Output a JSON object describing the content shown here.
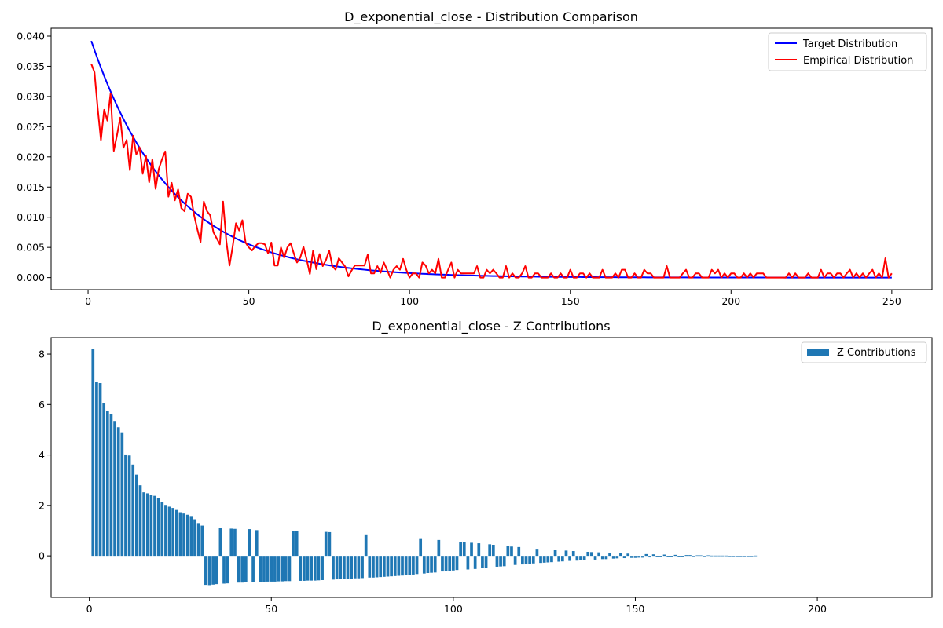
{
  "chart_data": [
    {
      "type": "line",
      "title": "D_exponential_close - Distribution Comparison",
      "xlabel": "",
      "ylabel": "",
      "xlim": [
        -11.5,
        262.5
      ],
      "ylim": [
        -0.002,
        0.0413
      ],
      "xticks": [
        0,
        50,
        100,
        150,
        200,
        250
      ],
      "yticks": [
        0.0,
        0.005,
        0.01,
        0.015,
        0.02,
        0.025,
        0.03,
        0.035,
        0.04
      ],
      "ytick_labels": [
        "0.000",
        "0.005",
        "0.010",
        "0.015",
        "0.020",
        "0.025",
        "0.030",
        "0.035",
        "0.040"
      ],
      "legend_position": "top-right",
      "series": [
        {
          "name": "Target Distribution",
          "color": "#0000ff",
          "function": {
            "kind": "exponential",
            "x_start": 1,
            "x_end": 250,
            "initial_value": 0.0392,
            "decay_rate": 0.04
          }
        },
        {
          "name": "Empirical Distribution",
          "color": "#ff0000",
          "x_start": 1,
          "values": [
            0.0354,
            0.034,
            0.028,
            0.0228,
            0.0278,
            0.026,
            0.0305,
            0.021,
            0.0236,
            0.0265,
            0.0215,
            0.0228,
            0.0178,
            0.0235,
            0.0204,
            0.0216,
            0.0172,
            0.0202,
            0.0158,
            0.0196,
            0.0147,
            0.018,
            0.0196,
            0.0209,
            0.0134,
            0.0157,
            0.0128,
            0.0146,
            0.0115,
            0.011,
            0.0139,
            0.0134,
            0.0103,
            0.008,
            0.0059,
            0.0126,
            0.011,
            0.0103,
            0.0075,
            0.0065,
            0.0055,
            0.0126,
            0.0061,
            0.002,
            0.0052,
            0.009,
            0.0078,
            0.0095,
            0.0058,
            0.005,
            0.0045,
            0.0052,
            0.0057,
            0.0057,
            0.0055,
            0.004,
            0.0058,
            0.002,
            0.002,
            0.005,
            0.0033,
            0.005,
            0.0057,
            0.004,
            0.0025,
            0.0033,
            0.0051,
            0.003,
            0.0006,
            0.0045,
            0.0014,
            0.0039,
            0.0019,
            0.0029,
            0.0045,
            0.0019,
            0.0013,
            0.0032,
            0.0025,
            0.0018,
            0.0002,
            0.0012,
            0.002,
            0.002,
            0.002,
            0.002,
            0.0038,
            0.0007,
            0.0007,
            0.0019,
            0.0008,
            0.0025,
            0.0013,
            0.0,
            0.0013,
            0.0019,
            0.0013,
            0.0031,
            0.0013,
            0.0,
            0.0007,
            0.0007,
            0.0,
            0.0025,
            0.002,
            0.0007,
            0.0013,
            0.0007,
            0.0031,
            0.0,
            0.0,
            0.0013,
            0.0025,
            0.0,
            0.0013,
            0.0007,
            0.0007,
            0.0007,
            0.0007,
            0.0007,
            0.0019,
            0.0,
            0.0,
            0.0013,
            0.0007,
            0.0013,
            0.0007,
            0.0,
            0.0,
            0.0019,
            0.0,
            0.0007,
            0.0,
            0.0,
            0.0007,
            0.0019,
            0.0,
            0.0,
            0.0007,
            0.0007,
            0.0,
            0.0,
            0.0,
            0.0007,
            0.0,
            0.0,
            0.0007,
            0.0,
            0.0,
            0.0013,
            0.0,
            0.0,
            0.0007,
            0.0007,
            0.0,
            0.0007,
            0.0,
            0.0,
            0.0,
            0.0013,
            0.0,
            0.0,
            0.0,
            0.0007,
            0.0,
            0.0013,
            0.0013,
            0.0,
            0.0,
            0.0007,
            0.0,
            0.0,
            0.0013,
            0.0007,
            0.0007,
            0.0,
            0.0,
            0.0,
            0.0,
            0.0019,
            0.0,
            0.0,
            0.0,
            0.0,
            0.0007,
            0.0013,
            0.0,
            0.0,
            0.0007,
            0.0007,
            0.0,
            0.0,
            0.0,
            0.0013,
            0.0007,
            0.0013,
            0.0,
            0.0007,
            0.0,
            0.0007,
            0.0007,
            0.0,
            0.0,
            0.0007,
            0.0,
            0.0007,
            0.0,
            0.0007,
            0.0007,
            0.0007,
            0.0,
            0.0,
            0.0,
            0.0,
            0.0,
            0.0,
            0.0,
            0.0007,
            0.0,
            0.0007,
            0.0,
            0.0,
            0.0,
            0.0007,
            0.0,
            0.0,
            0.0,
            0.0013,
            0.0,
            0.0007,
            0.0007,
            0.0,
            0.0007,
            0.0007,
            0.0,
            0.0007,
            0.0013,
            0.0,
            0.0007,
            0.0,
            0.0007,
            0.0,
            0.0007,
            0.0013,
            0.0,
            0.0007,
            0.0,
            0.0032,
            0.0,
            0.0007
          ]
        }
      ]
    },
    {
      "type": "bar",
      "title": "D_exponential_close - Z Contributions",
      "xlabel": "",
      "ylabel": "",
      "xlim": [
        -10.5,
        231.5
      ],
      "ylim": [
        -1.645,
        8.655
      ],
      "xticks": [
        0,
        50,
        100,
        150,
        200
      ],
      "yticks": [
        0,
        2,
        4,
        6,
        8
      ],
      "legend_position": "top-right",
      "series": [
        {
          "name": "Z Contributions",
          "color": "#1f77b4",
          "x_start": 1,
          "values": [
            8.2,
            6.9,
            6.85,
            6.05,
            5.75,
            5.62,
            5.35,
            5.1,
            4.9,
            4.02,
            3.98,
            3.62,
            3.22,
            2.8,
            2.52,
            2.48,
            2.43,
            2.38,
            2.3,
            2.15,
            2.02,
            1.95,
            1.9,
            1.82,
            1.73,
            1.68,
            1.63,
            1.58,
            1.45,
            1.3,
            1.2,
            -1.15,
            -1.16,
            -1.14,
            -1.12,
            1.12,
            -1.1,
            -1.09,
            1.08,
            1.07,
            -1.06,
            -1.06,
            -1.05,
            1.06,
            -1.05,
            1.02,
            -1.03,
            -1.03,
            -1.02,
            -1.02,
            -1.02,
            -1.01,
            -1.01,
            -1.0,
            -1.0,
            1.0,
            0.98,
            -0.99,
            -0.99,
            -0.98,
            -0.98,
            -0.98,
            -0.97,
            -0.96,
            0.95,
            0.94,
            -0.94,
            -0.93,
            -0.92,
            -0.92,
            -0.91,
            -0.9,
            -0.89,
            -0.89,
            -0.88,
            0.85,
            -0.86,
            -0.86,
            -0.85,
            -0.84,
            -0.83,
            -0.82,
            -0.81,
            -0.8,
            -0.79,
            -0.78,
            -0.76,
            -0.75,
            -0.74,
            -0.72,
            0.7,
            -0.7,
            -0.68,
            -0.67,
            -0.66,
            0.63,
            -0.62,
            -0.61,
            -0.6,
            -0.58,
            -0.56,
            0.56,
            0.55,
            -0.54,
            0.52,
            -0.52,
            0.5,
            -0.48,
            -0.47,
            0.46,
            0.44,
            -0.43,
            -0.42,
            -0.41,
            0.38,
            0.37,
            -0.36,
            0.35,
            -0.34,
            -0.32,
            -0.31,
            -0.3,
            0.28,
            -0.28,
            -0.27,
            -0.26,
            -0.25,
            0.24,
            -0.23,
            -0.22,
            0.21,
            -0.2,
            0.19,
            -0.19,
            -0.18,
            -0.17,
            0.16,
            0.15,
            -0.15,
            0.14,
            -0.13,
            -0.13,
            0.12,
            -0.11,
            -0.1,
            0.1,
            -0.09,
            0.09,
            -0.08,
            -0.08,
            -0.07,
            -0.07,
            0.07,
            -0.06,
            0.06,
            -0.05,
            -0.05,
            0.05,
            -0.04,
            -0.04,
            0.04,
            -0.03,
            -0.03,
            0.03,
            0.03,
            -0.02,
            0.02,
            0.02,
            -0.02,
            0.02,
            0.01,
            0.01,
            0.01,
            0.01,
            0.01,
            0.0,
            0.0,
            0.0,
            0.0,
            0.0,
            0.0,
            0.0,
            0.01
          ]
        }
      ]
    }
  ]
}
